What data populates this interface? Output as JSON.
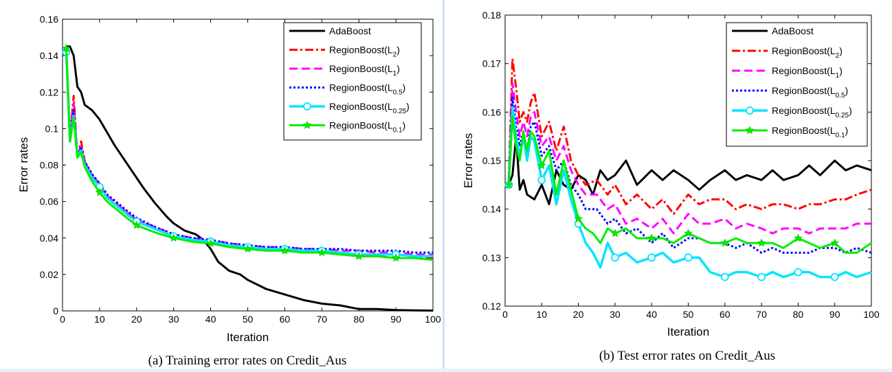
{
  "series_styles": [
    {
      "name": "AdaBoost",
      "base": "AdaBoost",
      "sub": "",
      "color": "#000000",
      "dash": "",
      "width": 3,
      "marker": "none"
    },
    {
      "name": "RegionBoost(L2)",
      "base": "RegionBoost(L",
      "sub": "2",
      "color": "#ff0000",
      "dash": "12 4 3 4",
      "width": 3,
      "marker": "none"
    },
    {
      "name": "RegionBoost(L1)",
      "base": "RegionBoost(L",
      "sub": "1",
      "color": "#ff00ff",
      "dash": "12 6",
      "width": 3,
      "marker": "none"
    },
    {
      "name": "RegionBoost(L0.5)",
      "base": "RegionBoost(L",
      "sub": "0.5",
      "color": "#0000ff",
      "dash": "3 3",
      "width": 3,
      "marker": "none"
    },
    {
      "name": "RegionBoost(L0.25)",
      "base": "RegionBoost(L",
      "sub": "0.25",
      "color": "#00e5ff",
      "dash": "",
      "width": 3.5,
      "marker": "circle"
    },
    {
      "name": "RegionBoost(L0.1)",
      "base": "RegionBoost(L",
      "sub": "0.1",
      "color": "#00ee00",
      "dash": "",
      "width": 3,
      "marker": "star"
    }
  ],
  "chart_data": [
    {
      "type": "line",
      "title": "",
      "caption": "(a) Training error rates on Credit_Aus",
      "xlabel": "Iteration",
      "ylabel": "Error rates",
      "xlim": [
        0,
        100
      ],
      "ylim": [
        0,
        0.16
      ],
      "xticks": [
        0,
        10,
        20,
        30,
        40,
        50,
        60,
        70,
        80,
        90,
        100
      ],
      "yticks": [
        0,
        0.02,
        0.04,
        0.06,
        0.08,
        0.1,
        0.12,
        0.14,
        0.16
      ],
      "ytick_labels": [
        "0",
        "0.02",
        "0.04",
        "0.06",
        "0.08",
        "0.1",
        "0.12",
        "0.14",
        "0.16"
      ],
      "legend_position": "top-right",
      "series": [
        {
          "name": "AdaBoost",
          "x": [
            1,
            2,
            3,
            4,
            5,
            6,
            8,
            10,
            12,
            14,
            16,
            18,
            20,
            22,
            25,
            28,
            30,
            33,
            36,
            38,
            40,
            42,
            45,
            48,
            50,
            55,
            60,
            65,
            70,
            75,
            80,
            85,
            90,
            95,
            100
          ],
          "values": [
            0.145,
            0.145,
            0.14,
            0.123,
            0.12,
            0.113,
            0.11,
            0.105,
            0.098,
            0.091,
            0.085,
            0.079,
            0.073,
            0.067,
            0.059,
            0.052,
            0.048,
            0.044,
            0.042,
            0.039,
            0.034,
            0.027,
            0.022,
            0.02,
            0.017,
            0.012,
            0.009,
            0.006,
            0.004,
            0.003,
            0.001,
            0.001,
            0.0005,
            0.0003,
            0.0002
          ]
        },
        {
          "name": "RegionBoost(L2)",
          "x": [
            1,
            2,
            3,
            4,
            5,
            6,
            8,
            10,
            12,
            15,
            18,
            20,
            25,
            30,
            35,
            40,
            45,
            50,
            55,
            60,
            65,
            70,
            75,
            80,
            85,
            90,
            95,
            100
          ],
          "values": [
            0.144,
            0.095,
            0.118,
            0.085,
            0.093,
            0.082,
            0.074,
            0.07,
            0.063,
            0.058,
            0.053,
            0.05,
            0.045,
            0.041,
            0.039,
            0.038,
            0.036,
            0.035,
            0.034,
            0.034,
            0.033,
            0.032,
            0.031,
            0.03,
            0.03,
            0.029,
            0.029,
            0.029
          ]
        },
        {
          "name": "RegionBoost(L1)",
          "x": [
            1,
            2,
            3,
            4,
            5,
            6,
            8,
            10,
            12,
            15,
            18,
            20,
            25,
            30,
            35,
            40,
            45,
            50,
            55,
            60,
            65,
            70,
            75,
            80,
            85,
            90,
            95,
            100
          ],
          "values": [
            0.143,
            0.097,
            0.114,
            0.085,
            0.09,
            0.081,
            0.074,
            0.069,
            0.063,
            0.058,
            0.053,
            0.05,
            0.046,
            0.042,
            0.04,
            0.039,
            0.037,
            0.036,
            0.035,
            0.035,
            0.034,
            0.034,
            0.033,
            0.033,
            0.032,
            0.032,
            0.031,
            0.031
          ]
        },
        {
          "name": "RegionBoost(L0.5)",
          "x": [
            1,
            2,
            3,
            4,
            5,
            6,
            8,
            10,
            12,
            15,
            18,
            20,
            25,
            30,
            35,
            40,
            45,
            50,
            55,
            60,
            65,
            70,
            75,
            80,
            85,
            90,
            95,
            100
          ],
          "values": [
            0.143,
            0.096,
            0.11,
            0.086,
            0.09,
            0.082,
            0.075,
            0.07,
            0.064,
            0.059,
            0.054,
            0.051,
            0.046,
            0.042,
            0.04,
            0.039,
            0.037,
            0.036,
            0.035,
            0.035,
            0.034,
            0.034,
            0.034,
            0.033,
            0.033,
            0.033,
            0.032,
            0.032
          ]
        },
        {
          "name": "RegionBoost(L0.25)",
          "x": [
            1,
            2,
            3,
            4,
            5,
            6,
            8,
            10,
            12,
            15,
            18,
            20,
            25,
            30,
            35,
            40,
            45,
            50,
            55,
            60,
            65,
            70,
            75,
            80,
            85,
            90,
            95,
            100
          ],
          "values": [
            0.142,
            0.093,
            0.107,
            0.085,
            0.088,
            0.08,
            0.073,
            0.068,
            0.062,
            0.057,
            0.052,
            0.049,
            0.045,
            0.041,
            0.039,
            0.038,
            0.036,
            0.035,
            0.034,
            0.034,
            0.033,
            0.033,
            0.032,
            0.031,
            0.031,
            0.031,
            0.03,
            0.03
          ]
        },
        {
          "name": "RegionBoost(L0.1)",
          "x": [
            1,
            2,
            3,
            4,
            5,
            6,
            8,
            10,
            12,
            15,
            18,
            20,
            25,
            30,
            35,
            40,
            45,
            50,
            55,
            60,
            65,
            70,
            75,
            80,
            85,
            90,
            95,
            100
          ],
          "values": [
            0.144,
            0.093,
            0.106,
            0.084,
            0.087,
            0.079,
            0.071,
            0.065,
            0.06,
            0.055,
            0.05,
            0.047,
            0.043,
            0.04,
            0.038,
            0.037,
            0.035,
            0.034,
            0.033,
            0.033,
            0.032,
            0.032,
            0.031,
            0.03,
            0.03,
            0.029,
            0.029,
            0.028
          ]
        }
      ]
    },
    {
      "type": "line",
      "title": "",
      "caption": "(b) Test error rates on Credit_Aus",
      "xlabel": "Iteration",
      "ylabel": "Error rates",
      "xlim": [
        0,
        100
      ],
      "ylim": [
        0.12,
        0.18
      ],
      "xticks": [
        0,
        10,
        20,
        30,
        40,
        50,
        60,
        70,
        80,
        90,
        100
      ],
      "yticks": [
        0.12,
        0.13,
        0.14,
        0.15,
        0.16,
        0.17,
        0.18
      ],
      "ytick_labels": [
        "0.12",
        "0.13",
        "0.14",
        "0.15",
        "0.16",
        "0.17",
        "0.18"
      ],
      "legend_position": "top-right",
      "series": [
        {
          "name": "AdaBoost",
          "x": [
            1,
            2,
            3,
            4,
            5,
            6,
            8,
            10,
            12,
            14,
            16,
            18,
            20,
            22,
            24,
            26,
            28,
            30,
            33,
            36,
            40,
            43,
            46,
            50,
            53,
            56,
            60,
            63,
            66,
            70,
            73,
            76,
            80,
            83,
            86,
            90,
            93,
            96,
            100
          ],
          "values": [
            0.145,
            0.147,
            0.155,
            0.144,
            0.146,
            0.143,
            0.142,
            0.145,
            0.141,
            0.148,
            0.145,
            0.144,
            0.147,
            0.146,
            0.143,
            0.148,
            0.146,
            0.147,
            0.15,
            0.145,
            0.148,
            0.146,
            0.148,
            0.146,
            0.144,
            0.146,
            0.148,
            0.146,
            0.147,
            0.146,
            0.148,
            0.146,
            0.147,
            0.149,
            0.147,
            0.15,
            0.148,
            0.149,
            0.148
          ]
        },
        {
          "name": "RegionBoost(L2)",
          "x": [
            1,
            2,
            3,
            4,
            5,
            6,
            7,
            8,
            10,
            12,
            14,
            16,
            18,
            20,
            22,
            25,
            28,
            30,
            33,
            36,
            40,
            43,
            46,
            50,
            53,
            56,
            60,
            63,
            66,
            70,
            73,
            76,
            80,
            83,
            86,
            90,
            93,
            96,
            100
          ],
          "values": [
            0.146,
            0.171,
            0.165,
            0.158,
            0.16,
            0.158,
            0.162,
            0.164,
            0.155,
            0.158,
            0.152,
            0.157,
            0.15,
            0.147,
            0.145,
            0.146,
            0.143,
            0.145,
            0.141,
            0.143,
            0.14,
            0.142,
            0.139,
            0.143,
            0.141,
            0.142,
            0.142,
            0.14,
            0.141,
            0.14,
            0.141,
            0.141,
            0.14,
            0.141,
            0.141,
            0.142,
            0.142,
            0.143,
            0.144
          ]
        },
        {
          "name": "RegionBoost(L1)",
          "x": [
            1,
            2,
            3,
            4,
            5,
            6,
            7,
            8,
            10,
            12,
            14,
            16,
            18,
            20,
            22,
            25,
            28,
            30,
            33,
            36,
            40,
            43,
            46,
            50,
            53,
            56,
            60,
            63,
            66,
            70,
            73,
            76,
            80,
            83,
            86,
            90,
            93,
            96,
            100
          ],
          "values": [
            0.145,
            0.166,
            0.16,
            0.155,
            0.158,
            0.155,
            0.159,
            0.16,
            0.153,
            0.155,
            0.15,
            0.153,
            0.148,
            0.145,
            0.143,
            0.143,
            0.14,
            0.141,
            0.137,
            0.138,
            0.136,
            0.138,
            0.135,
            0.139,
            0.137,
            0.137,
            0.138,
            0.136,
            0.137,
            0.136,
            0.135,
            0.136,
            0.136,
            0.135,
            0.136,
            0.136,
            0.136,
            0.137,
            0.137
          ]
        },
        {
          "name": "RegionBoost(L0.5)",
          "x": [
            1,
            2,
            3,
            4,
            5,
            6,
            7,
            8,
            10,
            12,
            14,
            16,
            18,
            20,
            22,
            25,
            28,
            30,
            33,
            36,
            40,
            43,
            46,
            50,
            53,
            56,
            60,
            63,
            66,
            70,
            73,
            76,
            80,
            83,
            86,
            90,
            93,
            96,
            100
          ],
          "values": [
            0.146,
            0.163,
            0.157,
            0.153,
            0.156,
            0.152,
            0.157,
            0.158,
            0.151,
            0.153,
            0.148,
            0.15,
            0.145,
            0.143,
            0.14,
            0.14,
            0.137,
            0.138,
            0.135,
            0.136,
            0.133,
            0.135,
            0.132,
            0.134,
            0.134,
            0.133,
            0.133,
            0.132,
            0.133,
            0.131,
            0.132,
            0.131,
            0.131,
            0.131,
            0.132,
            0.132,
            0.131,
            0.132,
            0.131
          ]
        },
        {
          "name": "RegionBoost(L0.25)",
          "x": [
            1,
            2,
            3,
            4,
            5,
            6,
            7,
            8,
            10,
            12,
            14,
            16,
            18,
            20,
            22,
            24,
            26,
            28,
            30,
            33,
            36,
            40,
            43,
            46,
            50,
            53,
            56,
            60,
            63,
            66,
            70,
            73,
            76,
            80,
            83,
            86,
            90,
            93,
            96,
            100
          ],
          "values": [
            0.145,
            0.161,
            0.155,
            0.151,
            0.155,
            0.15,
            0.155,
            0.154,
            0.146,
            0.149,
            0.141,
            0.148,
            0.142,
            0.137,
            0.133,
            0.131,
            0.128,
            0.133,
            0.13,
            0.131,
            0.129,
            0.13,
            0.131,
            0.129,
            0.13,
            0.13,
            0.127,
            0.126,
            0.127,
            0.127,
            0.126,
            0.127,
            0.126,
            0.127,
            0.127,
            0.126,
            0.126,
            0.127,
            0.126,
            0.127
          ]
        },
        {
          "name": "RegionBoost(L0.1)",
          "x": [
            1,
            2,
            3,
            4,
            5,
            6,
            7,
            8,
            10,
            12,
            14,
            16,
            18,
            20,
            22,
            24,
            26,
            28,
            30,
            33,
            36,
            40,
            43,
            46,
            50,
            53,
            56,
            60,
            63,
            66,
            70,
            73,
            76,
            80,
            83,
            86,
            90,
            93,
            96,
            100
          ],
          "values": [
            0.145,
            0.159,
            0.153,
            0.15,
            0.156,
            0.152,
            0.156,
            0.155,
            0.149,
            0.152,
            0.143,
            0.15,
            0.144,
            0.138,
            0.136,
            0.135,
            0.133,
            0.136,
            0.135,
            0.136,
            0.134,
            0.134,
            0.134,
            0.133,
            0.135,
            0.134,
            0.133,
            0.133,
            0.134,
            0.133,
            0.133,
            0.133,
            0.132,
            0.134,
            0.133,
            0.132,
            0.133,
            0.131,
            0.131,
            0.133
          ]
        }
      ]
    }
  ]
}
